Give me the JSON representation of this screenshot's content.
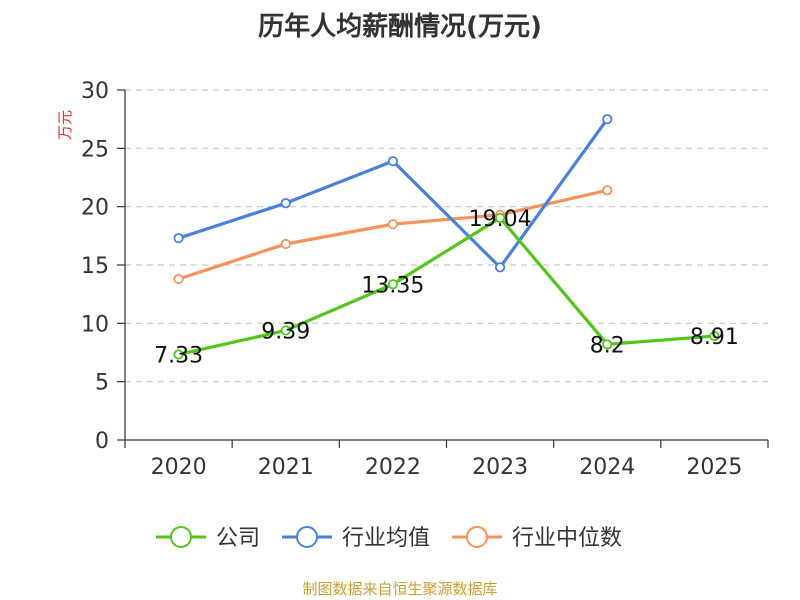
{
  "title": "历年人均薪酬情况(万元)",
  "footer": "制图数据来自恒生聚源数据库",
  "chart_data": {
    "type": "line",
    "title": "历年人均薪酬情况(万元)",
    "ylabel": "万元",
    "xlabel": "",
    "categories": [
      "2020",
      "2021",
      "2022",
      "2023",
      "2024",
      "2025"
    ],
    "ylim": [
      0,
      30
    ],
    "yticks": [
      0,
      5,
      10,
      15,
      20,
      25,
      30
    ],
    "grid": true,
    "legend_position": "bottom",
    "series": [
      {
        "name": "公司",
        "color": "#52c41a",
        "values": [
          7.33,
          9.39,
          13.35,
          19.04,
          8.2,
          8.91
        ],
        "show_labels": true
      },
      {
        "name": "行业均值",
        "color": "#4a7fdc",
        "values": [
          17.3,
          20.3,
          23.9,
          14.8,
          27.5,
          null
        ],
        "show_labels": false
      },
      {
        "name": "行业中位数",
        "color": "#f5935a",
        "values": [
          13.8,
          16.8,
          18.5,
          19.3,
          21.4,
          null
        ],
        "show_labels": false
      }
    ]
  }
}
